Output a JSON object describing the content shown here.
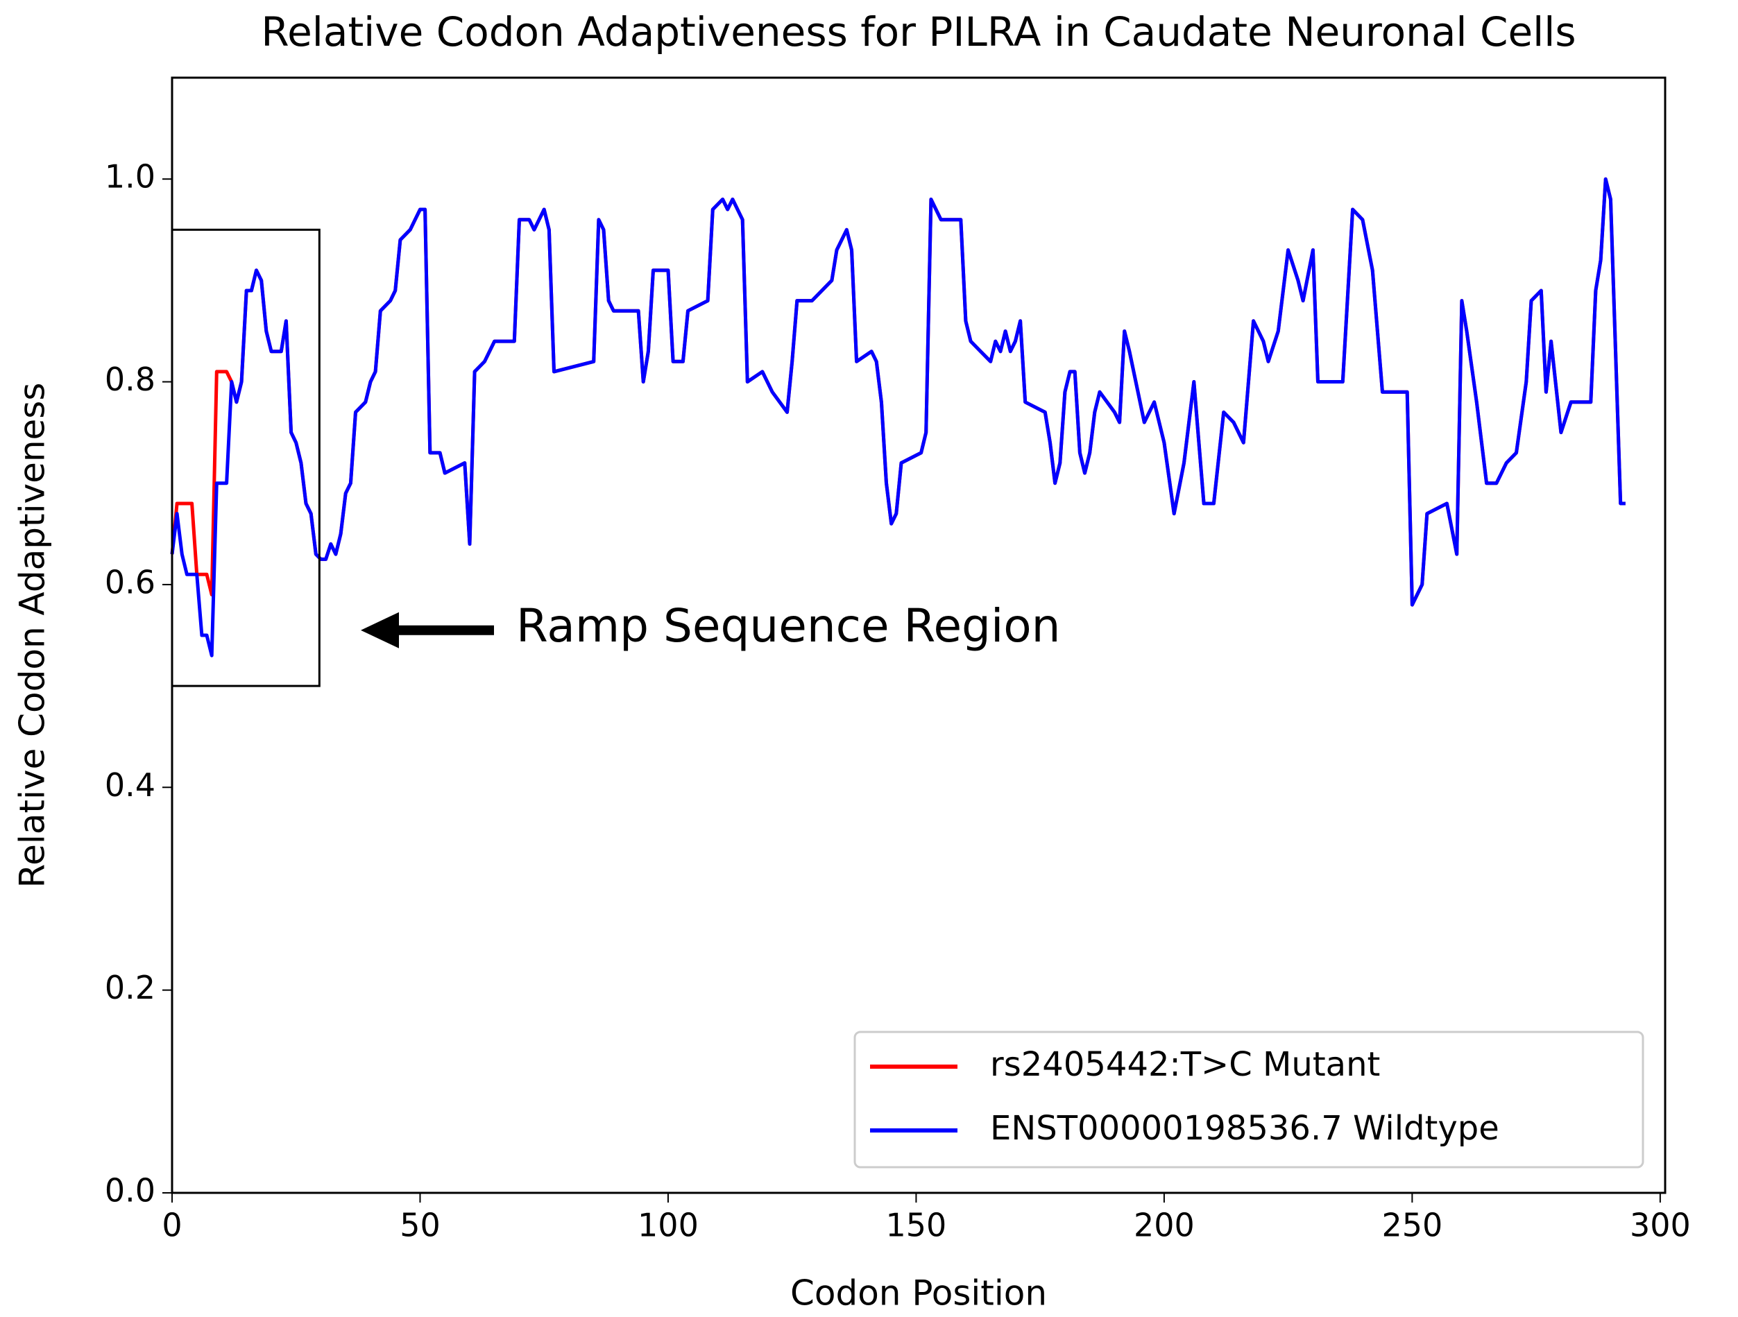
{
  "chart_data": {
    "type": "line",
    "title": "Relative Codon Adaptiveness for PILRA in Caudate Neuronal Cells",
    "xlabel": "Codon Position",
    "ylabel": "Relative Codon Adaptiveness",
    "annotation": "Ramp Sequence Region",
    "x": [
      0,
      1,
      2,
      3,
      4,
      5,
      6,
      7,
      8,
      9,
      10,
      11,
      12,
      13,
      14,
      15,
      16,
      17,
      18,
      19,
      20,
      21,
      22,
      23,
      24,
      25,
      26,
      27,
      28,
      29,
      30,
      31,
      32,
      33,
      34,
      35,
      36,
      37,
      39,
      40,
      41,
      42,
      44,
      45,
      46,
      48,
      49,
      50,
      51,
      52,
      54,
      55,
      59,
      60,
      61,
      63,
      65,
      69,
      70,
      72,
      73,
      75,
      76,
      77,
      85,
      86,
      87,
      88,
      89,
      94,
      95,
      96,
      97,
      100,
      101,
      103,
      104,
      108,
      109,
      111,
      112,
      113,
      115,
      116,
      119,
      121,
      124,
      125,
      126,
      129,
      131,
      133,
      134,
      136,
      137,
      138,
      141,
      142,
      143,
      144,
      145,
      146,
      147,
      151,
      152,
      153,
      155,
      159,
      160,
      161,
      163,
      165,
      166,
      167,
      168,
      169,
      170,
      171,
      172,
      176,
      177,
      178,
      179,
      180,
      181,
      182,
      183,
      184,
      185,
      186,
      187,
      190,
      191,
      192,
      193,
      196,
      198,
      200,
      202,
      204,
      206,
      208,
      210,
      212,
      214,
      216,
      218,
      220,
      221,
      223,
      225,
      227,
      228,
      230,
      231,
      236,
      238,
      240,
      242,
      244,
      249,
      250,
      252,
      253,
      257,
      259,
      260,
      261,
      263,
      265,
      267,
      269,
      271,
      273,
      274,
      276,
      277,
      278,
      280,
      282,
      286,
      287,
      288,
      289,
      290,
      292,
      293
    ],
    "series": [
      {
        "name": "rs2405442:T>C Mutant",
        "color": "#ff0000",
        "values": [
          0.63,
          0.68,
          0.68,
          0.68,
          0.68,
          0.61,
          0.61,
          0.61,
          0.59,
          0.81,
          0.81,
          0.81,
          0.8,
          0.78,
          0.8,
          0.89,
          0.89,
          0.91,
          0.9,
          0.85,
          0.83,
          0.83,
          0.83,
          0.86,
          0.75,
          0.74,
          0.72,
          0.68,
          0.67,
          0.63,
          0.625,
          0.625,
          0.64,
          0.63,
          0.65,
          0.69,
          0.7,
          0.77,
          0.78,
          0.8,
          0.81,
          0.87,
          0.88,
          0.89,
          0.94,
          0.95,
          0.96,
          0.97,
          0.97,
          0.73,
          0.73,
          0.71,
          0.72,
          0.64,
          0.81,
          0.82,
          0.84,
          0.84,
          0.96,
          0.96,
          0.95,
          0.97,
          0.95,
          0.81,
          0.82,
          0.96,
          0.95,
          0.88,
          0.87,
          0.87,
          0.8,
          0.83,
          0.91,
          0.91,
          0.82,
          0.82,
          0.87,
          0.88,
          0.97,
          0.98,
          0.97,
          0.98,
          0.96,
          0.8,
          0.81,
          0.79,
          0.77,
          0.82,
          0.88,
          0.88,
          0.89,
          0.9,
          0.93,
          0.95,
          0.93,
          0.82,
          0.83,
          0.82,
          0.78,
          0.7,
          0.66,
          0.67,
          0.72,
          0.73,
          0.75,
          0.98,
          0.96,
          0.96,
          0.86,
          0.84,
          0.83,
          0.82,
          0.84,
          0.83,
          0.85,
          0.83,
          0.84,
          0.86,
          0.78,
          0.77,
          0.74,
          0.7,
          0.72,
          0.79,
          0.81,
          0.81,
          0.73,
          0.71,
          0.73,
          0.77,
          0.79,
          0.77,
          0.76,
          0.85,
          0.83,
          0.76,
          0.78,
          0.74,
          0.67,
          0.72,
          0.8,
          0.68,
          0.68,
          0.77,
          0.76,
          0.74,
          0.86,
          0.84,
          0.82,
          0.85,
          0.93,
          0.9,
          0.88,
          0.93,
          0.8,
          0.8,
          0.97,
          0.96,
          0.91,
          0.79,
          0.79,
          0.58,
          0.6,
          0.67,
          0.68,
          0.63,
          0.88,
          0.85,
          0.78,
          0.7,
          0.7,
          0.72,
          0.73,
          0.8,
          0.88,
          0.89,
          0.79,
          0.84,
          0.75,
          0.78,
          0.78,
          0.89,
          0.92,
          1.0,
          0.98,
          0.68,
          0.68
        ]
      },
      {
        "name": "ENST00000198536.7 Wildtype",
        "color": "#0000ff",
        "values": [
          0.63,
          0.67,
          0.63,
          0.61,
          0.61,
          0.61,
          0.55,
          0.55,
          0.53,
          0.7,
          0.7,
          0.7,
          0.8,
          0.78,
          0.8,
          0.89,
          0.89,
          0.91,
          0.9,
          0.85,
          0.83,
          0.83,
          0.83,
          0.86,
          0.75,
          0.74,
          0.72,
          0.68,
          0.67,
          0.63,
          0.625,
          0.625,
          0.64,
          0.63,
          0.65,
          0.69,
          0.7,
          0.77,
          0.78,
          0.8,
          0.81,
          0.87,
          0.88,
          0.89,
          0.94,
          0.95,
          0.96,
          0.97,
          0.97,
          0.73,
          0.73,
          0.71,
          0.72,
          0.64,
          0.81,
          0.82,
          0.84,
          0.84,
          0.96,
          0.96,
          0.95,
          0.97,
          0.95,
          0.81,
          0.82,
          0.96,
          0.95,
          0.88,
          0.87,
          0.87,
          0.8,
          0.83,
          0.91,
          0.91,
          0.82,
          0.82,
          0.87,
          0.88,
          0.97,
          0.98,
          0.97,
          0.98,
          0.96,
          0.8,
          0.81,
          0.79,
          0.77,
          0.82,
          0.88,
          0.88,
          0.89,
          0.9,
          0.93,
          0.95,
          0.93,
          0.82,
          0.83,
          0.82,
          0.78,
          0.7,
          0.66,
          0.67,
          0.72,
          0.73,
          0.75,
          0.98,
          0.96,
          0.96,
          0.86,
          0.84,
          0.83,
          0.82,
          0.84,
          0.83,
          0.85,
          0.83,
          0.84,
          0.86,
          0.78,
          0.77,
          0.74,
          0.7,
          0.72,
          0.79,
          0.81,
          0.81,
          0.73,
          0.71,
          0.73,
          0.77,
          0.79,
          0.77,
          0.76,
          0.85,
          0.83,
          0.76,
          0.78,
          0.74,
          0.67,
          0.72,
          0.8,
          0.68,
          0.68,
          0.77,
          0.76,
          0.74,
          0.86,
          0.84,
          0.82,
          0.85,
          0.93,
          0.9,
          0.88,
          0.93,
          0.8,
          0.8,
          0.97,
          0.96,
          0.91,
          0.79,
          0.79,
          0.58,
          0.6,
          0.67,
          0.68,
          0.63,
          0.88,
          0.85,
          0.78,
          0.7,
          0.7,
          0.72,
          0.73,
          0.8,
          0.88,
          0.89,
          0.79,
          0.84,
          0.75,
          0.78,
          0.78,
          0.89,
          0.92,
          1.0,
          0.98,
          0.68,
          0.68
        ]
      }
    ],
    "xlim": [
      0,
      301
    ],
    "xticks": [
      0,
      50,
      100,
      150,
      200,
      250,
      300
    ],
    "ylim": [
      0,
      1.1
    ],
    "yticks": [
      {
        "value": 0,
        "label": "0.0"
      },
      0.2,
      0.4,
      0.6,
      0.8,
      {
        "value": 1,
        "label": "1.0"
      }
    ],
    "grid": false,
    "legend": "lower right"
  }
}
